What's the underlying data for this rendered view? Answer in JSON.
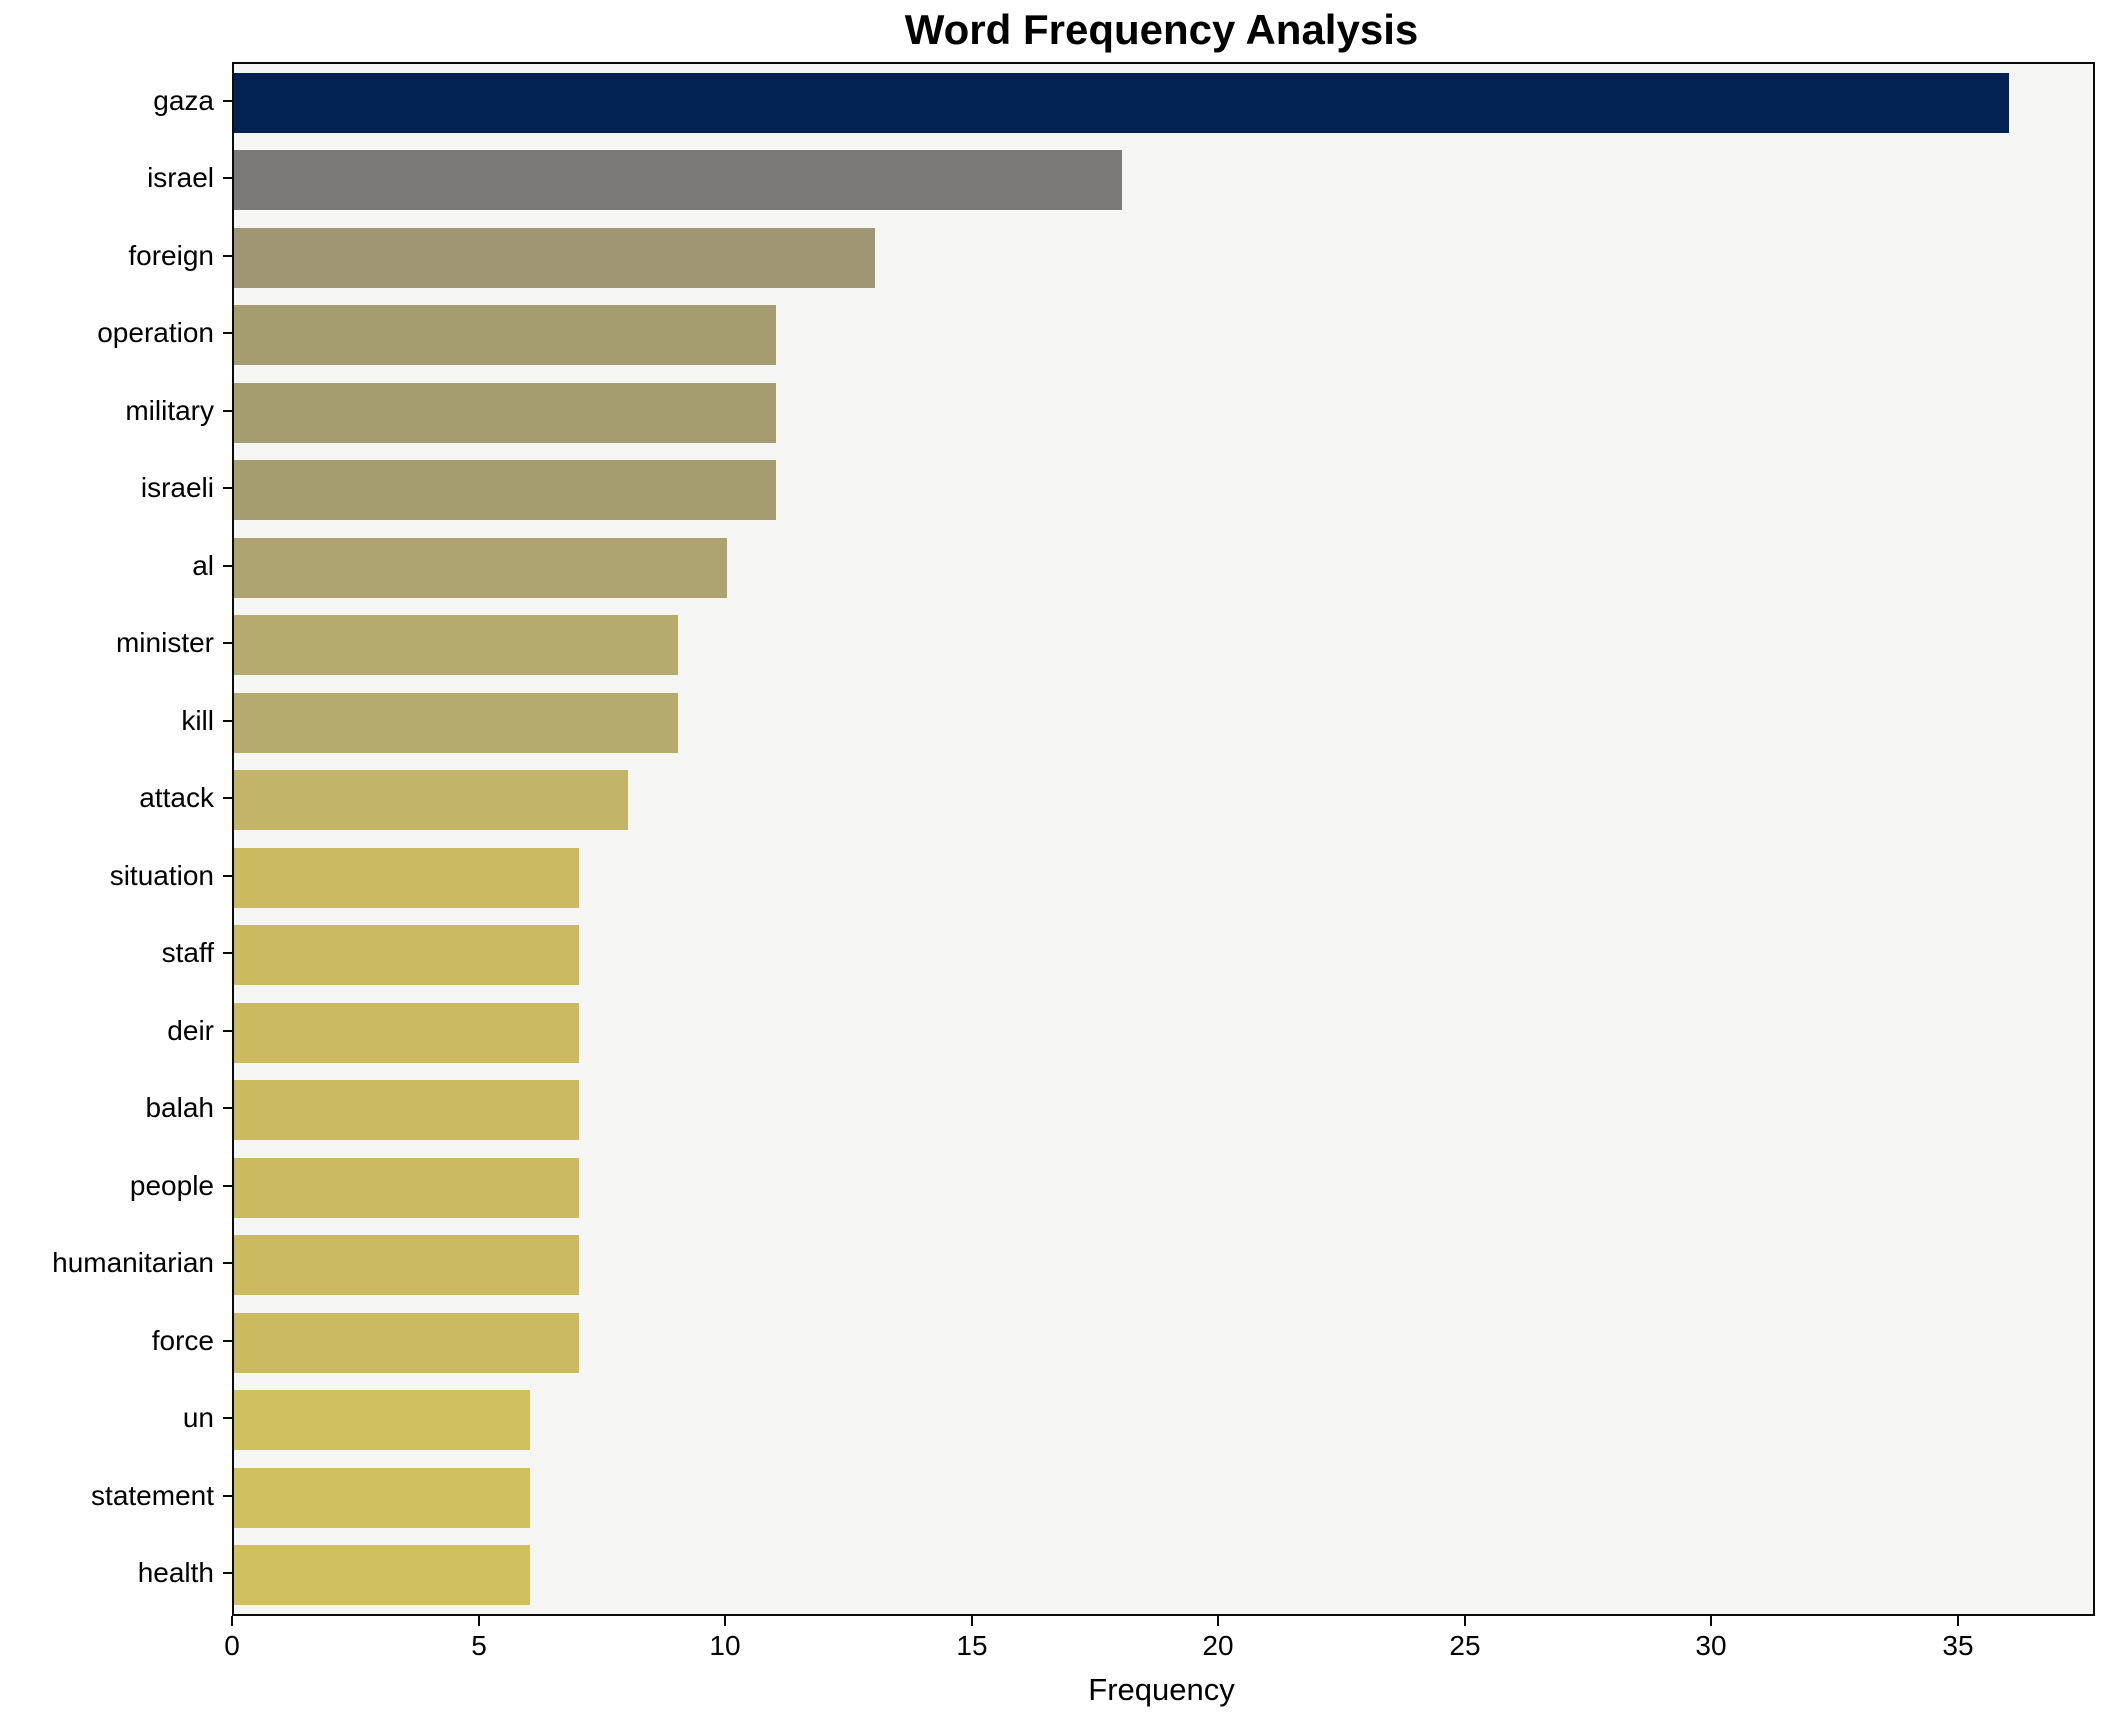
{
  "chart": {
    "title": "Word Frequency Analysis",
    "xlabel": "Frequency"
  },
  "chart_data": {
    "type": "bar",
    "orientation": "horizontal",
    "title": "Word Frequency Analysis",
    "xlabel": "Frequency",
    "ylabel": "",
    "categories": [
      "gaza",
      "israel",
      "foreign",
      "operation",
      "military",
      "israeli",
      "al",
      "minister",
      "kill",
      "attack",
      "situation",
      "staff",
      "deir",
      "balah",
      "people",
      "humanitarian",
      "force",
      "un",
      "statement",
      "health"
    ],
    "values": [
      36,
      18,
      13,
      11,
      11,
      11,
      10,
      9,
      9,
      8,
      7,
      7,
      7,
      7,
      7,
      7,
      7,
      6,
      6,
      6
    ],
    "bar_colors": [
      "#012253",
      "#7b7a78",
      "#9f9773",
      "#a59c70",
      "#a59c70",
      "#a59c70",
      "#ada371",
      "#b5ab6e",
      "#b5ab6e",
      "#c2b468",
      "#cbba60",
      "#cbba60",
      "#cbba60",
      "#cbba60",
      "#cbba60",
      "#cbba60",
      "#cbba60",
      "#d1c05f",
      "#d1c05f",
      "#d1c05f"
    ],
    "xlim": [
      0,
      37.7
    ],
    "xticks": [
      0,
      5,
      10,
      15,
      20,
      25,
      30,
      35
    ],
    "grid": false,
    "legend_position": "none",
    "plot_bg": "#f5f5f4",
    "figure_bg": "#ffffff",
    "spine_color": "#0a0a0a"
  }
}
